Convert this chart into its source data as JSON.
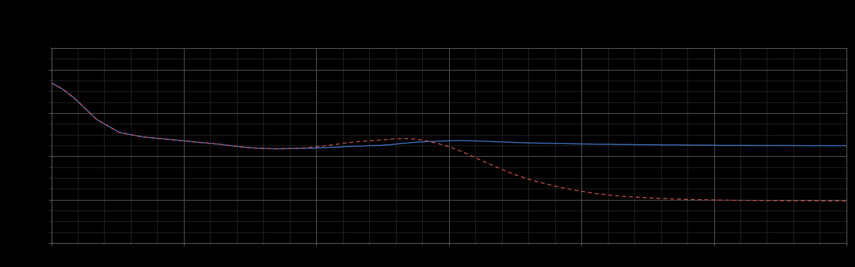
{
  "background_color": "#000000",
  "plot_bg_color": "#000000",
  "grid_color": "#606060",
  "axes_color": "#888888",
  "blue_line_color": "#4472C4",
  "red_line_color": "#C0504D",
  "figsize": [
    12.09,
    3.78
  ],
  "dpi": 100,
  "xlim": [
    0,
    210
  ],
  "ylim": [
    0,
    9
  ],
  "xticks_major": [
    0,
    35,
    70,
    105,
    140,
    175,
    210
  ],
  "yticks_major": [
    0,
    2,
    4,
    6,
    8
  ],
  "xticks_minor_step": 7,
  "yticks_minor_step": 0.5,
  "blue_x": [
    0,
    3,
    6,
    9,
    12,
    15,
    18,
    21,
    24,
    27,
    30,
    33,
    36,
    39,
    42,
    45,
    48,
    51,
    54,
    57,
    60,
    63,
    66,
    69,
    72,
    75,
    78,
    81,
    84,
    87,
    90,
    93,
    96,
    99,
    102,
    105,
    108,
    111,
    114,
    117,
    120,
    123,
    126,
    129,
    132,
    135,
    138,
    141,
    144,
    147,
    150,
    153,
    156,
    159,
    162,
    165,
    168,
    171,
    174,
    177,
    180,
    183,
    186,
    189,
    192,
    195,
    198,
    201,
    204,
    207,
    210
  ],
  "blue_y": [
    7.4,
    7.1,
    6.7,
    6.2,
    5.7,
    5.4,
    5.1,
    5.0,
    4.9,
    4.85,
    4.8,
    4.75,
    4.7,
    4.65,
    4.6,
    4.55,
    4.48,
    4.42,
    4.38,
    4.36,
    4.35,
    4.36,
    4.37,
    4.38,
    4.4,
    4.42,
    4.45,
    4.47,
    4.49,
    4.51,
    4.55,
    4.6,
    4.65,
    4.68,
    4.7,
    4.72,
    4.73,
    4.72,
    4.7,
    4.68,
    4.66,
    4.64,
    4.62,
    4.61,
    4.6,
    4.59,
    4.58,
    4.57,
    4.56,
    4.56,
    4.55,
    4.55,
    4.54,
    4.54,
    4.53,
    4.53,
    4.52,
    4.52,
    4.52,
    4.51,
    4.51,
    4.51,
    4.5,
    4.5,
    4.5,
    4.5,
    4.49,
    4.49,
    4.49,
    4.49,
    4.49
  ],
  "red_x": [
    0,
    3,
    6,
    9,
    12,
    15,
    18,
    21,
    24,
    27,
    30,
    33,
    36,
    39,
    42,
    45,
    48,
    51,
    54,
    57,
    60,
    63,
    66,
    69,
    72,
    75,
    78,
    81,
    84,
    87,
    90,
    93,
    96,
    99,
    102,
    105,
    108,
    111,
    114,
    117,
    120,
    123,
    126,
    129,
    132,
    135,
    138,
    141,
    144,
    147,
    150,
    153,
    156,
    159,
    162,
    165,
    168,
    171,
    174,
    177,
    180,
    183,
    186,
    189,
    192,
    195,
    198,
    201,
    204,
    207,
    210
  ],
  "red_y": [
    7.4,
    7.1,
    6.7,
    6.2,
    5.7,
    5.4,
    5.1,
    5.0,
    4.9,
    4.85,
    4.8,
    4.75,
    4.7,
    4.65,
    4.6,
    4.55,
    4.48,
    4.42,
    4.38,
    4.36,
    4.35,
    4.36,
    4.38,
    4.42,
    4.48,
    4.55,
    4.62,
    4.68,
    4.72,
    4.75,
    4.8,
    4.82,
    4.8,
    4.72,
    4.6,
    4.45,
    4.25,
    4.02,
    3.78,
    3.55,
    3.32,
    3.12,
    2.95,
    2.8,
    2.67,
    2.55,
    2.45,
    2.36,
    2.28,
    2.22,
    2.17,
    2.13,
    2.1,
    2.07,
    2.05,
    2.03,
    2.01,
    2.0,
    1.99,
    1.98,
    1.97,
    1.97,
    1.96,
    1.96,
    1.95,
    1.95,
    1.95,
    1.95,
    1.94,
    1.94,
    1.94
  ]
}
